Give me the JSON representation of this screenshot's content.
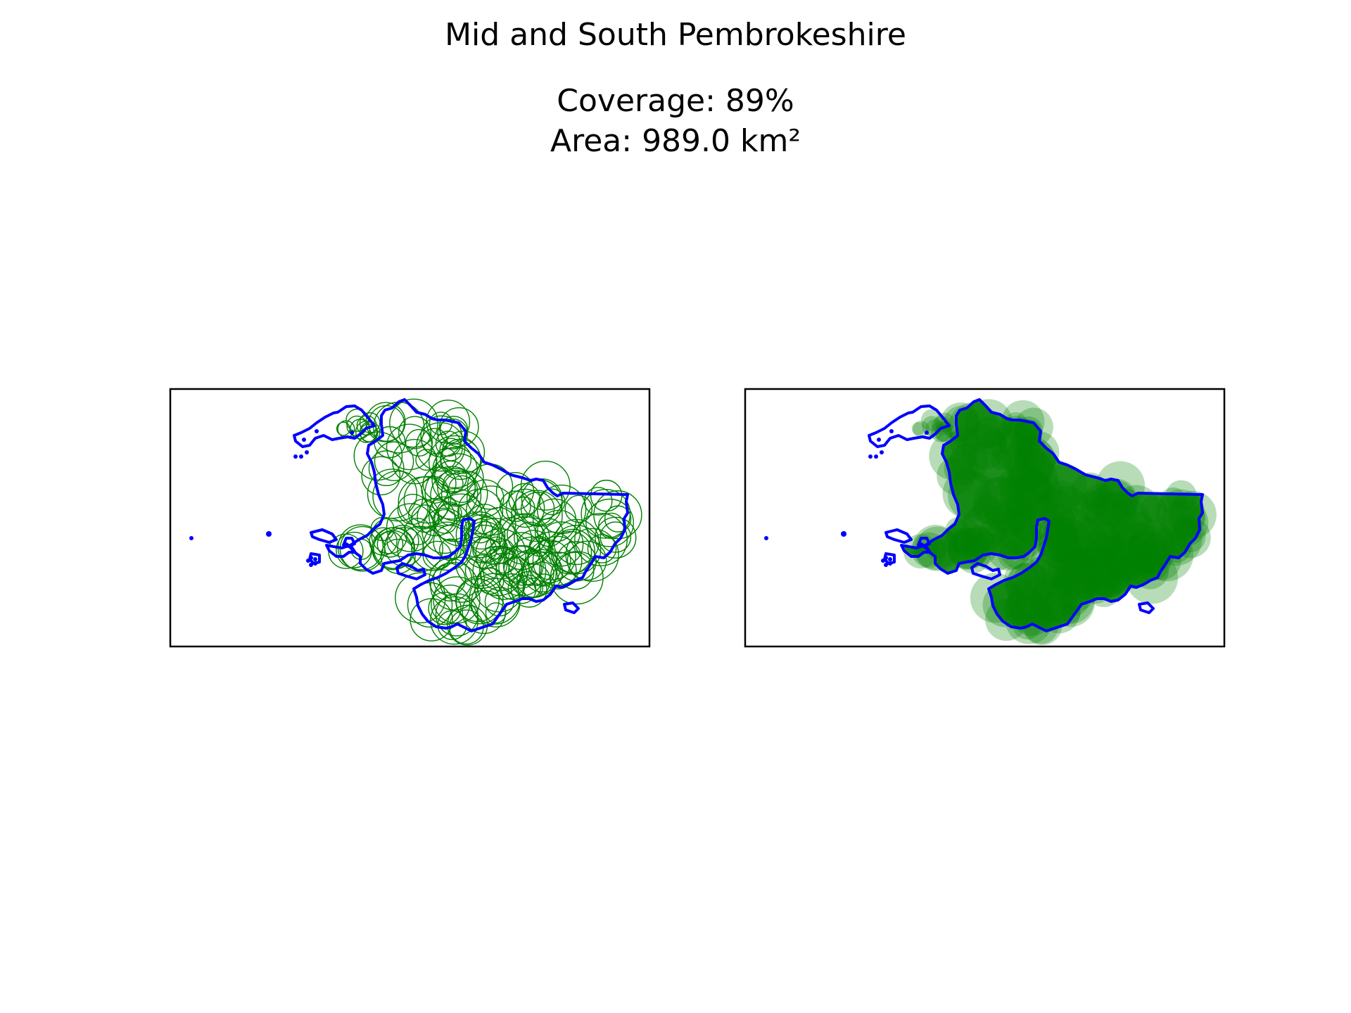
{
  "figure": {
    "title": "Mid and South Pembrokeshire",
    "subtitle_line1": "Coverage: 89%",
    "subtitle_line2": "Area: 989.0 km²"
  },
  "colors": {
    "boundary": "#0000ff",
    "coverage": "#008000",
    "frame": "#000000",
    "background": "#ffffff"
  },
  "panels": [
    {
      "name": "coverage-circles-outline",
      "style": "outline"
    },
    {
      "name": "coverage-circles-filled",
      "style": "filled"
    }
  ]
}
